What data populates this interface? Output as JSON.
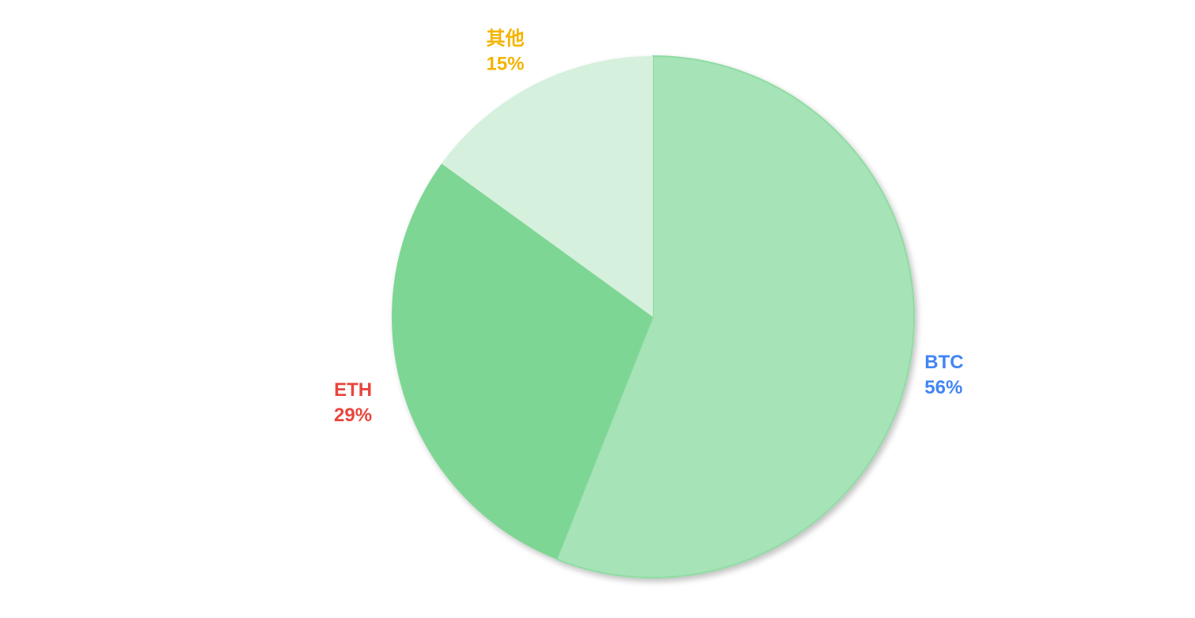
{
  "chart_data": {
    "type": "pie",
    "title": "",
    "legend": "none",
    "slices": [
      {
        "label": "BTC",
        "value": 56,
        "value_label": "56%",
        "color": "#a6e3b7",
        "label_color": "#4285f4"
      },
      {
        "label": "ETH",
        "value": 29,
        "value_label": "29%",
        "color": "#7ed694",
        "label_color": "#e8453c"
      },
      {
        "label": "其他",
        "value": 15,
        "value_label": "15%",
        "color": "#d5f0dc",
        "label_color": "#f4b400"
      }
    ]
  }
}
